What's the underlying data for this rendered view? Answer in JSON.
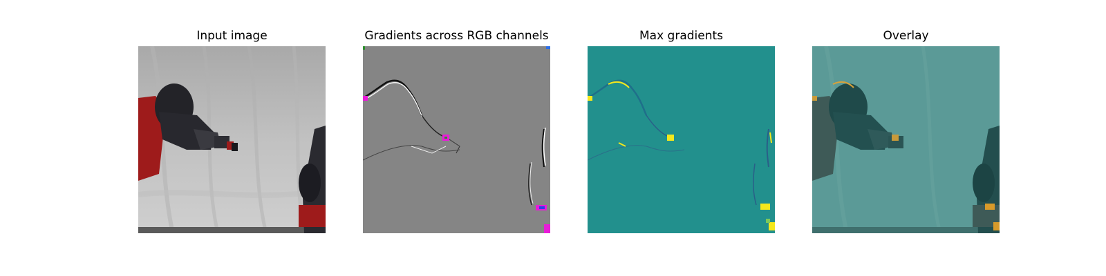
{
  "panels": [
    {
      "title": "Input image"
    },
    {
      "title": "Gradients across RGB channels"
    },
    {
      "title": "Max gradients"
    },
    {
      "title": "Overlay"
    }
  ],
  "colors": {
    "background_gray": "#bcbcbc",
    "gradient_gray": "#858585",
    "max_gradient_teal": "#22908d",
    "overlay_teal": "#5b9a97",
    "robot_black": "#232328",
    "robot_red": "#9e1b1b",
    "highlight_yellow": "#f4e81c",
    "highlight_magenta": "#ff26e8"
  }
}
